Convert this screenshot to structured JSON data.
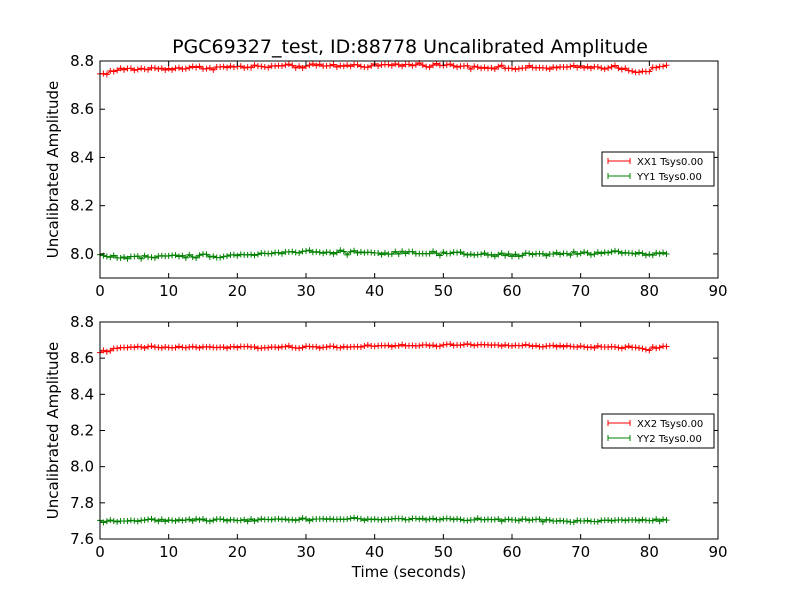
{
  "figure": {
    "title": "PGC69327_test, ID:88778 Uncalibrated Amplitude"
  },
  "colors": {
    "red": "#ff0000",
    "green": "#008000"
  },
  "chart_data": [
    {
      "type": "line",
      "title": "PGC69327_test, ID:88778 Uncalibrated Amplitude",
      "xlabel": "",
      "ylabel": "Uncalibrated Amplitude",
      "xlim": [
        0,
        90
      ],
      "ylim": [
        7.9,
        8.8
      ],
      "xticks": [
        "0",
        "10",
        "20",
        "30",
        "40",
        "50",
        "60",
        "70",
        "80",
        "90"
      ],
      "yticks": [
        "8.0",
        "8.2",
        "8.4",
        "8.6",
        "8.8"
      ],
      "legend_position": "right",
      "marker": "+",
      "x_range": [
        0,
        82.5
      ],
      "samples": 166,
      "series": [
        {
          "name": "XX1 Tsys0.00",
          "color": "#ff0000",
          "mean": 8.775,
          "noise": 0.006,
          "profile": [
            [
              0,
              8.745
            ],
            [
              3,
              8.765
            ],
            [
              20,
              8.775
            ],
            [
              48,
              8.785
            ],
            [
              60,
              8.77
            ],
            [
              75,
              8.775
            ],
            [
              79,
              8.755
            ],
            [
              82.5,
              8.78
            ]
          ]
        },
        {
          "name": "YY1 Tsys0.00",
          "color": "#008000",
          "mean": 8.0,
          "noise": 0.006,
          "profile": [
            [
              0,
              7.995
            ],
            [
              3,
              7.985
            ],
            [
              20,
              7.995
            ],
            [
              30,
              8.01
            ],
            [
              60,
              7.995
            ],
            [
              75,
              8.005
            ],
            [
              82.5,
              8.0
            ]
          ]
        }
      ]
    },
    {
      "type": "line",
      "title": "",
      "xlabel": "Time (seconds)",
      "ylabel": "Uncalibrated Amplitude",
      "xlim": [
        0,
        90
      ],
      "ylim": [
        7.6,
        8.8
      ],
      "xticks": [
        "0",
        "10",
        "20",
        "30",
        "40",
        "50",
        "60",
        "70",
        "80",
        "90"
      ],
      "yticks": [
        "7.6",
        "7.8",
        "8.0",
        "8.2",
        "8.4",
        "8.6",
        "8.8"
      ],
      "legend_position": "right",
      "marker": "+",
      "x_range": [
        0,
        82.5
      ],
      "samples": 166,
      "series": [
        {
          "name": "XX2 Tsys0.00",
          "color": "#ff0000",
          "mean": 8.665,
          "noise": 0.005,
          "profile": [
            [
              0,
              8.635
            ],
            [
              4,
              8.66
            ],
            [
              30,
              8.66
            ],
            [
              55,
              8.675
            ],
            [
              65,
              8.665
            ],
            [
              78,
              8.66
            ],
            [
              80,
              8.648
            ],
            [
              82.5,
              8.67
            ]
          ]
        },
        {
          "name": "YY2 Tsys0.00",
          "color": "#008000",
          "mean": 7.705,
          "noise": 0.005,
          "profile": [
            [
              0,
              7.7
            ],
            [
              30,
              7.71
            ],
            [
              50,
              7.71
            ],
            [
              70,
              7.7
            ],
            [
              82.5,
              7.705
            ]
          ]
        }
      ]
    }
  ]
}
